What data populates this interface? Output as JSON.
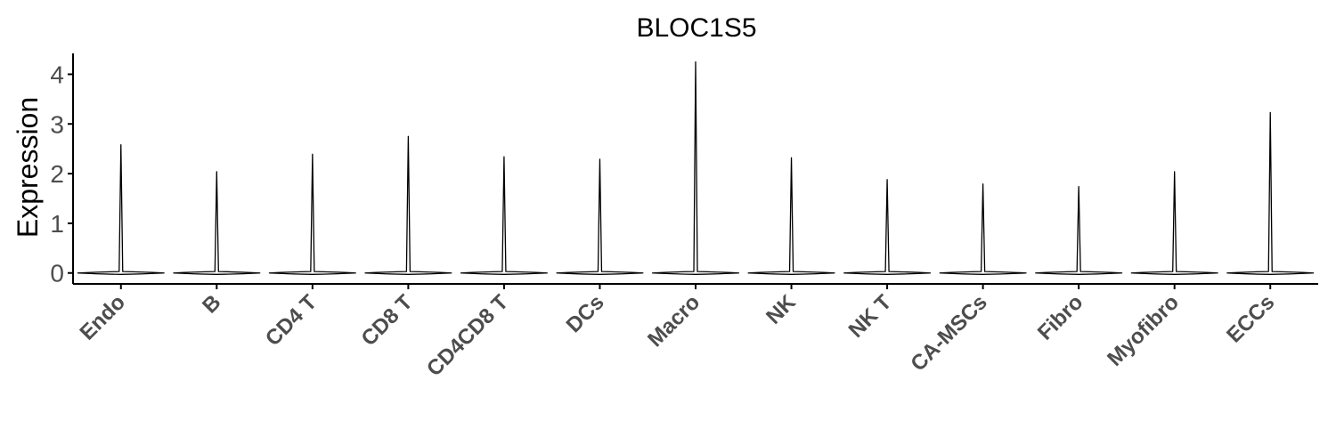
{
  "chart_data": {
    "type": "violin",
    "title": "BLOC1S5",
    "xlabel": "",
    "ylabel": "Expression",
    "ylim": [
      -0.22,
      4.42
    ],
    "yticks": [
      0,
      1,
      2,
      3,
      4
    ],
    "categories": [
      "Endo",
      "B",
      "CD4 T",
      "CD8 T",
      "CD4CD8 T",
      "DCs",
      "Macro",
      "NK",
      "NK T",
      "CA-MSCs",
      "Fibro",
      "Myofibro",
      "ECCs"
    ],
    "max_values": [
      2.58,
      2.04,
      2.39,
      2.75,
      2.34,
      2.29,
      4.25,
      2.32,
      1.88,
      1.79,
      1.74,
      2.04,
      3.23
    ],
    "grid": false,
    "legend": "none",
    "colors": {
      "axis": "#000000",
      "violin": "#000000",
      "tick_label": "#4d4d4d"
    }
  }
}
